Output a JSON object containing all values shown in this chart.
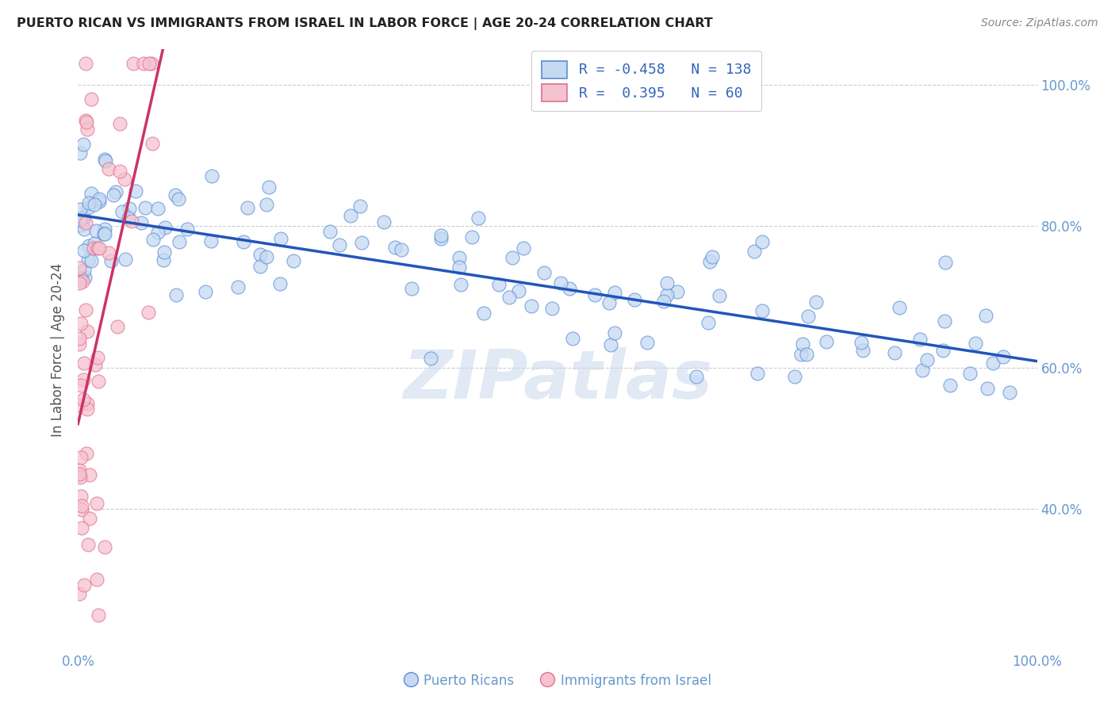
{
  "title": "PUERTO RICAN VS IMMIGRANTS FROM ISRAEL IN LABOR FORCE | AGE 20-24 CORRELATION CHART",
  "source": "Source: ZipAtlas.com",
  "ylabel": "In Labor Force | Age 20-24",
  "watermark": "ZIPatlas",
  "legend_blue_r": "-0.458",
  "legend_blue_n": "138",
  "legend_pink_r": "0.395",
  "legend_pink_n": "60",
  "legend_blue_label": "Puerto Ricans",
  "legend_pink_label": "Immigrants from Israel",
  "blue_fill": "#c5d9f1",
  "blue_edge": "#5b8dd9",
  "pink_fill": "#f5c2d0",
  "pink_edge": "#e07090",
  "blue_line_color": "#2255bb",
  "pink_line_color": "#cc3366",
  "background_color": "#ffffff",
  "grid_color": "#cccccc",
  "tick_color": "#6699cc",
  "title_color": "#222222",
  "watermark_color": "#c8d8ec",
  "xlim": [
    0,
    100
  ],
  "ylim": [
    20,
    105
  ],
  "yticks": [
    40,
    60,
    80,
    100
  ],
  "ytick_labels": [
    "40.0%",
    "60.0%",
    "80.0%",
    "100.0%"
  ],
  "xtick_labels": [
    "0.0%",
    "100.0%"
  ]
}
